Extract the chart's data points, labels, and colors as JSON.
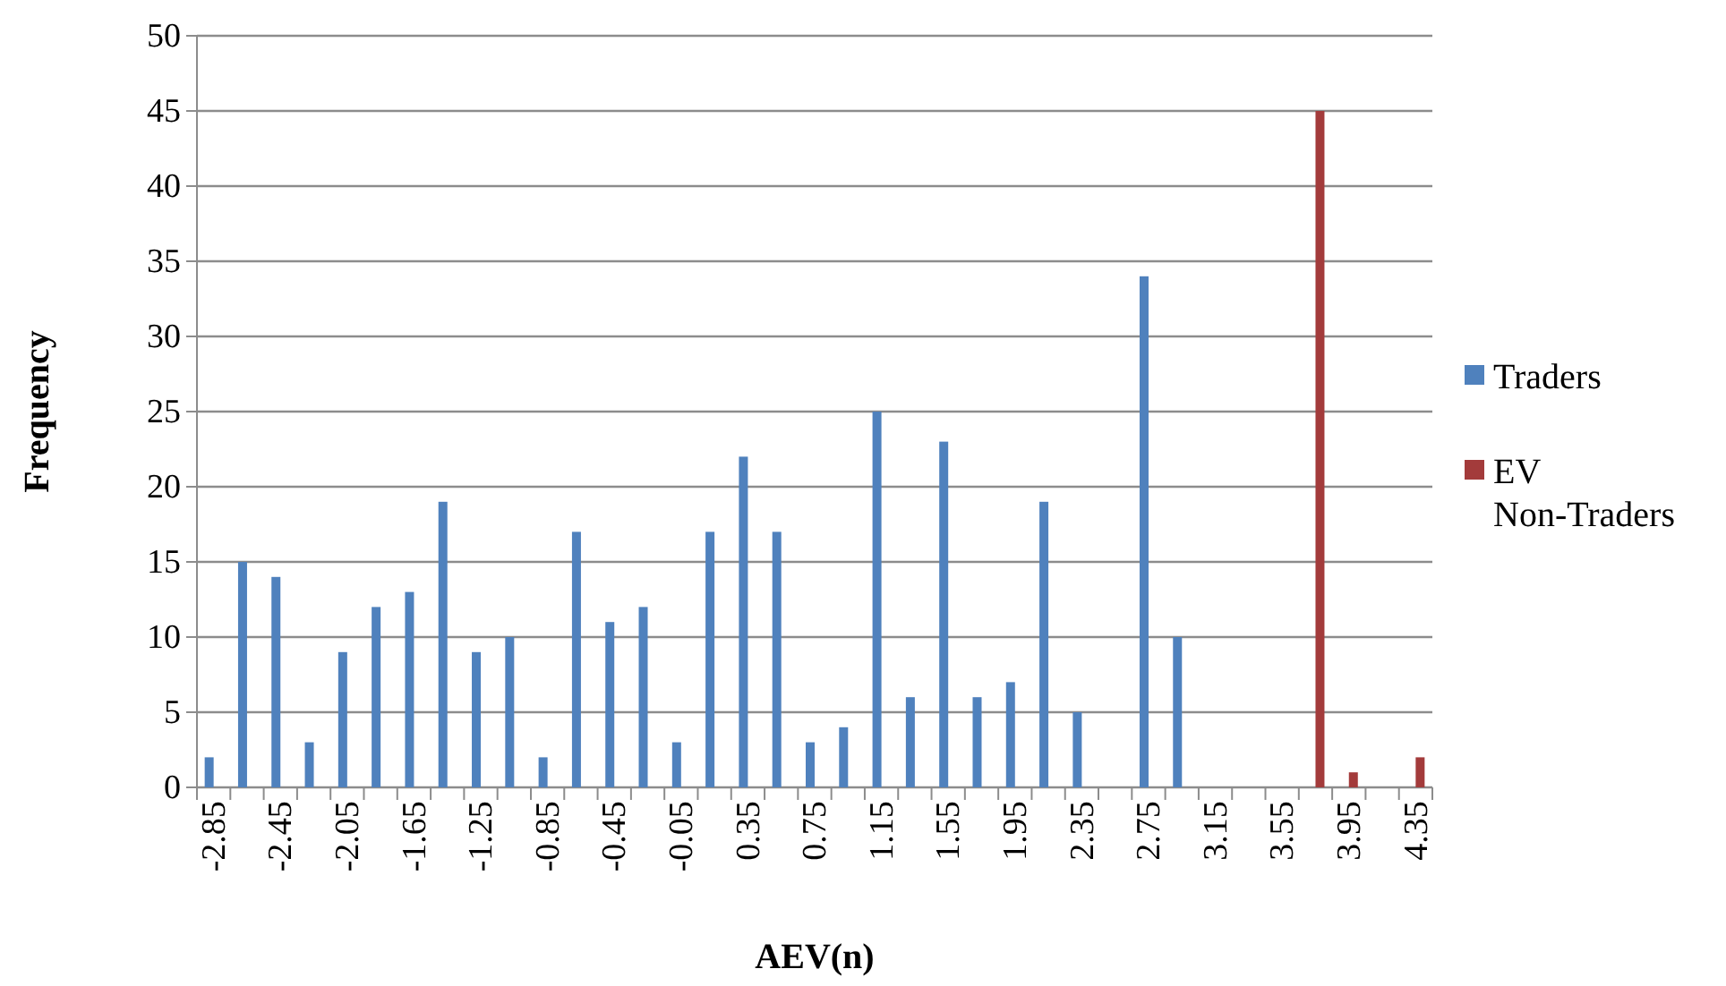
{
  "chart_data": {
    "type": "bar",
    "xlabel": "AEV(n)",
    "ylabel": "Frequency",
    "categories": [
      "-2.85",
      null,
      "-2.45",
      null,
      "-2.05",
      null,
      "-1.65",
      null,
      "-1.25",
      null,
      "-0.85",
      null,
      "-0.45",
      null,
      "-0.05",
      null,
      "0.35",
      null,
      "0.75",
      null,
      "1.15",
      null,
      "1.55",
      null,
      "1.95",
      null,
      "2.35",
      null,
      "2.75",
      null,
      "3.15",
      null,
      "3.55",
      null,
      "3.95",
      null,
      "4.35"
    ],
    "series": [
      {
        "name": "Traders",
        "color": "#4f81bd",
        "values": [
          2,
          15,
          14,
          3,
          9,
          12,
          13,
          19,
          9,
          10,
          2,
          17,
          11,
          12,
          3,
          17,
          22,
          17,
          3,
          4,
          25,
          6,
          23,
          6,
          7,
          19,
          5,
          null,
          34,
          10,
          null,
          null,
          null,
          null,
          null,
          null,
          null
        ]
      },
      {
        "name": "EV Non-Traders",
        "color": "#a33b3b",
        "values": [
          null,
          null,
          null,
          null,
          null,
          null,
          null,
          null,
          null,
          null,
          null,
          null,
          null,
          null,
          null,
          null,
          null,
          null,
          null,
          null,
          null,
          null,
          null,
          null,
          null,
          null,
          null,
          null,
          null,
          null,
          null,
          null,
          null,
          45,
          1,
          null,
          2
        ]
      }
    ],
    "ylim": [
      0,
      50
    ],
    "yticks": [
      0,
      5,
      10,
      15,
      20,
      25,
      30,
      35,
      40,
      45,
      50
    ],
    "grid": "y",
    "legend": "right"
  }
}
